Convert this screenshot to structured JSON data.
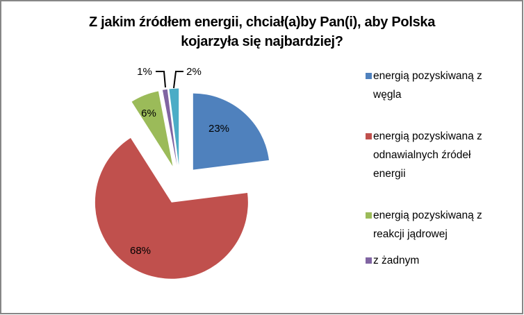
{
  "chart_data": {
    "type": "pie",
    "title": "Z jakim źródłem energii, chciał(a)by Pan(i), aby Polska kojarzyła się najbardziej?",
    "title_lines": [
      "Z jakim źródłem energii, chciał(a)by Pan(i), aby Polska",
      "kojarzyła się najbardziej?"
    ],
    "exploded": true,
    "start_angle_deg": 0,
    "direction": "clockwise",
    "legend_position": "right",
    "slices": [
      {
        "name": "energią pozyskiwaną z węgla",
        "value": 23,
        "label": "23%",
        "color": "#4F81BD"
      },
      {
        "name": "energią pozyskiwana z odnawialnych źródeł energii",
        "value": 68,
        "label": "68%",
        "color": "#C0504D"
      },
      {
        "name": "energią pozyskiwaną z reakcji jądrowej",
        "value": 6,
        "label": "6%",
        "color": "#9BBB59"
      },
      {
        "name": "z żadnym",
        "value": 1,
        "label": "1%",
        "color": "#8064A2"
      },
      {
        "name": "",
        "value": 2,
        "label": "2%",
        "color": "#4BACC6"
      }
    ],
    "categories": [
      "energią pozyskiwaną z węgla",
      "energią pozyskiwana z odnawialnych źródeł energii",
      "energią pozyskiwaną z reakcji jądrowej",
      "z żadnym",
      ""
    ],
    "values": [
      23,
      68,
      6,
      1,
      2
    ]
  },
  "legend": {
    "items": [
      {
        "lines": [
          "energią pozyskiwaną z",
          "węgla"
        ],
        "color": "#4F81BD"
      },
      {
        "lines": [
          "energią pozyskiwana z",
          "odnawialnych źródeł",
          "energii"
        ],
        "color": "#C0504D"
      },
      {
        "lines": [
          "energią pozyskiwaną z",
          "reakcji jądrowej"
        ],
        "color": "#9BBB59"
      },
      {
        "lines": [
          "z żadnym"
        ],
        "color": "#8064A2"
      }
    ]
  }
}
